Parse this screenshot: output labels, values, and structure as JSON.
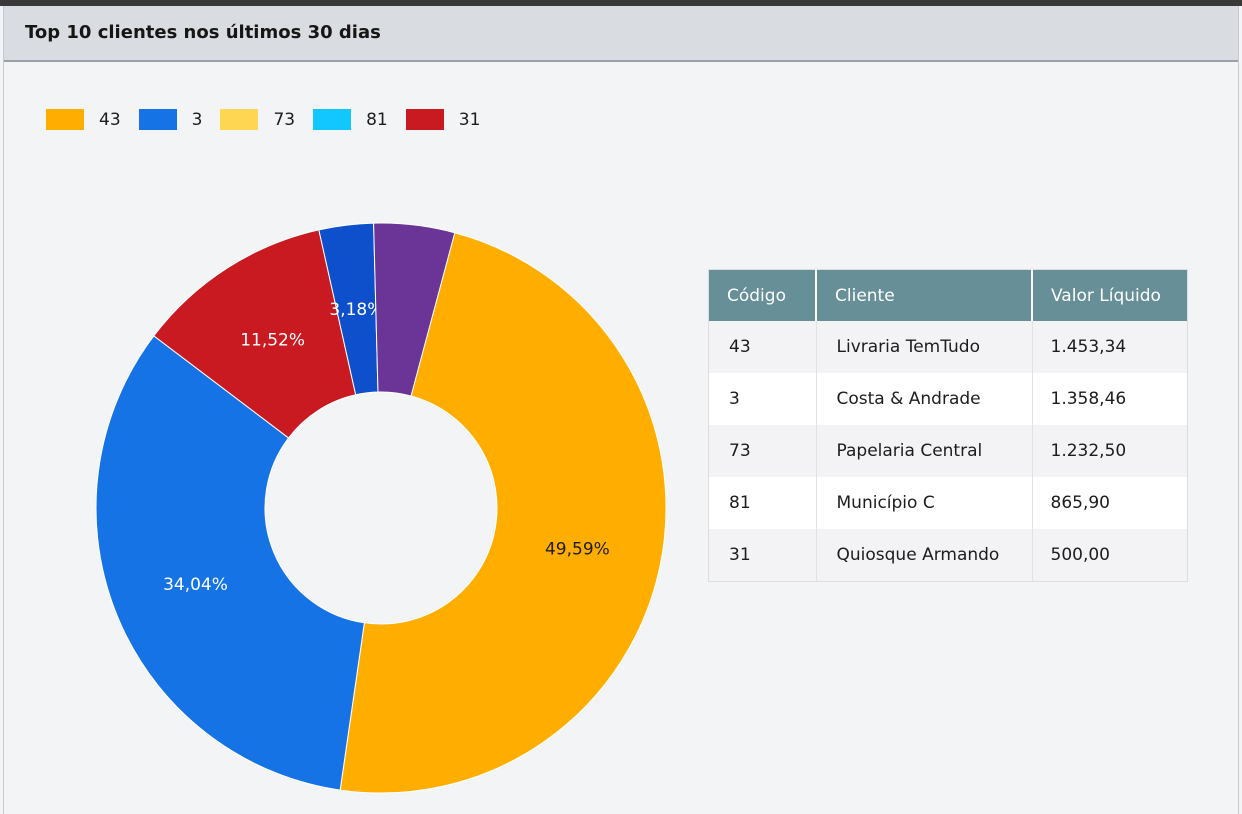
{
  "panel": {
    "title": "Top 10 clientes nos últimos 30 dias"
  },
  "chart_data": {
    "type": "pie",
    "variant": "donut",
    "title": "",
    "slices": [
      {
        "name": "43",
        "value": 49.59,
        "label": "49,59%",
        "color": "#ffae00",
        "label_color": "#1c1c1c"
      },
      {
        "name": "3",
        "value": 34.04,
        "label": "34,04%",
        "color": "#1673e6",
        "label_color": "#ffffff"
      },
      {
        "name": "31",
        "value": 11.52,
        "label": "11,52%",
        "color": "#c81a20",
        "label_color": "#ffffff"
      },
      {
        "name": "",
        "value": 3.18,
        "label": "3,18%",
        "color": "#0e4fcc",
        "label_color": "#ffffff"
      },
      {
        "name": "",
        "value": 4.72,
        "label": "",
        "color": "#6a3597",
        "label_color": "#ffffff"
      }
    ],
    "legend": [
      {
        "label": "43",
        "color": "#ffae00"
      },
      {
        "label": "3",
        "color": "#1673e6"
      },
      {
        "label": "73",
        "color": "#ffd652"
      },
      {
        "label": "81",
        "color": "#12c7ff"
      },
      {
        "label": "31",
        "color": "#c81a20"
      }
    ],
    "legend_position": "top-left"
  },
  "table": {
    "headers": [
      "Código",
      "Cliente",
      "Valor Líquido"
    ],
    "rows": [
      [
        "43",
        "Livraria TemTudo",
        "1.453,34"
      ],
      [
        "3",
        "Costa & Andrade",
        "1.358,46"
      ],
      [
        "73",
        "Papelaria Central",
        "1.232,50"
      ],
      [
        "81",
        "Município C",
        "865,90"
      ],
      [
        "31",
        "Quiosque Armando",
        "500,00"
      ]
    ]
  },
  "colors": {
    "header_bg": "#d9dce0",
    "table_header_bg": "#668f97",
    "panel_bg": "#f3f4f6"
  }
}
